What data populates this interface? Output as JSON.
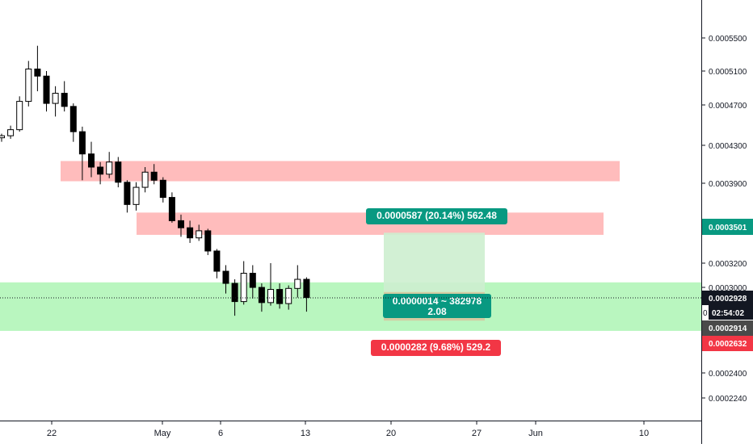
{
  "chart_data": {
    "type": "candlestick",
    "x_ticks": [
      "22",
      "May",
      "6",
      "13",
      "20",
      "27",
      "Jun",
      "10"
    ],
    "y_ticks": [
      "0.0005500",
      "0.0005100",
      "0.0004700",
      "0.0004300",
      "0.0003900",
      "0.0003200",
      "0.0003000",
      "0.0002400",
      "0.0002240"
    ],
    "price_tags": {
      "target": {
        "value": "0.0003501",
        "color": "#089981"
      },
      "last": {
        "value": "0.0002928",
        "color": "#131722"
      },
      "countdown": {
        "value": "02:54:02",
        "color": "#131722"
      },
      "entry": {
        "value": "0.0002914",
        "color": "#4a4a4a"
      },
      "stop": {
        "value": "0.0002632",
        "color": "#f23645"
      }
    },
    "hidden_tick_fragment": "0",
    "zones": [
      {
        "kind": "resistance",
        "color": "#ffbcbc",
        "low": 0.000401,
        "high": 0.000421,
        "from_index": 6,
        "to_index": 70
      },
      {
        "kind": "resistance",
        "color": "#ffbcbc",
        "low": 0.000348,
        "high": 0.00037,
        "from_index": 15,
        "to_index": 67
      },
      {
        "kind": "support",
        "color": "#b9f6bf",
        "low": 0.000253,
        "high": 0.000301,
        "from_index": 0,
        "to_index": 82
      }
    ],
    "long_position": {
      "entry": 0.0002914,
      "target": 0.0003501,
      "stop": 0.0002632,
      "profit_label": "0.0000587 (20.14%) 562.48",
      "center_label_line1": "0.0000014 ~ 382978",
      "center_label_line2": "2.08",
      "loss_label": "0.0000282 (9.68%) 529.2"
    },
    "candles": [
      [
        0.000444,
        0.000448,
        0.00044,
        0.000446
      ],
      [
        0.000446,
        0.000456,
        0.000443,
        0.000452
      ],
      [
        0.000452,
        0.000485,
        0.00045,
        0.00048
      ],
      [
        0.00048,
        0.00052,
        0.000475,
        0.000512
      ],
      [
        0.000512,
        0.000535,
        0.00049,
        0.000505
      ],
      [
        0.000505,
        0.00051,
        0.00047,
        0.000478
      ],
      [
        0.000478,
        0.000495,
        0.000465,
        0.000488
      ],
      [
        0.000488,
        0.0005,
        0.00047,
        0.000475
      ],
      [
        0.000475,
        0.000478,
        0.00044,
        0.00045
      ],
      [
        0.00045,
        0.000455,
        0.000402,
        0.000428
      ],
      [
        0.000428,
        0.00044,
        0.000405,
        0.000415
      ],
      [
        0.000415,
        0.00042,
        0.000398,
        0.000408
      ],
      [
        0.000408,
        0.00043,
        0.000404,
        0.00042
      ],
      [
        0.00042,
        0.000425,
        0.000395,
        0.0004
      ],
      [
        0.0004,
        0.000402,
        0.00037,
        0.000378
      ],
      [
        0.000378,
        0.0004,
        0.000372,
        0.000395
      ],
      [
        0.000395,
        0.000415,
        0.00039,
        0.00041
      ],
      [
        0.00041,
        0.000418,
        0.000398,
        0.000402
      ],
      [
        0.000402,
        0.000405,
        0.00038,
        0.000385
      ],
      [
        0.000385,
        0.00039,
        0.00036,
        0.000362
      ],
      [
        0.000362,
        0.000368,
        0.000346,
        0.000355
      ],
      [
        0.000355,
        0.000362,
        0.00034,
        0.000345
      ],
      [
        0.000345,
        0.000358,
        0.000342,
        0.000352
      ],
      [
        0.000352,
        0.000354,
        0.000328,
        0.000332
      ],
      [
        0.000332,
        0.000334,
        0.000305,
        0.000312
      ],
      [
        0.000312,
        0.000318,
        0.00029,
        0.0003
      ],
      [
        0.0003,
        0.000304,
        0.000268,
        0.000282
      ],
      [
        0.000282,
        0.000322,
        0.000279,
        0.00031
      ],
      [
        0.00031,
        0.000318,
        0.000285,
        0.000296
      ],
      [
        0.000296,
        0.0003,
        0.000272,
        0.000281
      ],
      [
        0.000281,
        0.00032,
        0.000278,
        0.000294
      ],
      [
        0.000294,
        0.0003,
        0.000275,
        0.00028
      ],
      [
        0.00028,
        0.000298,
        0.000274,
        0.000295
      ],
      [
        0.000295,
        0.000318,
        0.000286,
        0.000304
      ],
      [
        0.000304,
        0.000306,
        0.000272,
        0.000286
      ]
    ]
  }
}
